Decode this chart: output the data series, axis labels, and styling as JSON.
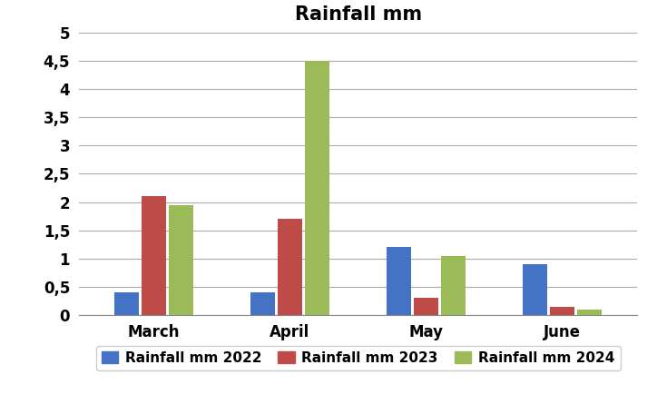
{
  "title": "Rainfall mm",
  "categories": [
    "March",
    "April",
    "May",
    "June"
  ],
  "series": [
    {
      "label": "Rainfall mm 2022",
      "color": "#4472C4",
      "values": [
        0.4,
        0.4,
        1.2,
        0.9
      ]
    },
    {
      "label": "Rainfall mm 2023",
      "color": "#BE4B48",
      "values": [
        2.1,
        1.7,
        0.3,
        0.15
      ]
    },
    {
      "label": "Rainfall mm 2024",
      "color": "#9BBB59",
      "values": [
        1.95,
        4.5,
        1.05,
        0.1
      ]
    }
  ],
  "ylim": [
    0,
    5
  ],
  "yticks": [
    0,
    0.5,
    1,
    1.5,
    2,
    2.5,
    3,
    3.5,
    4,
    4.5,
    5
  ],
  "ytick_labels": [
    "0",
    "0,5",
    "1",
    "1,5",
    "2",
    "2,5",
    "3",
    "3,5",
    "4",
    "4,5",
    "5"
  ],
  "bar_width": 0.18,
  "background_color": "#FFFFFF",
  "grid_color": "#AAAAAA",
  "title_fontsize": 15,
  "tick_fontsize": 12,
  "legend_fontsize": 11,
  "xlim_left": -0.55,
  "xlim_right": 3.55
}
